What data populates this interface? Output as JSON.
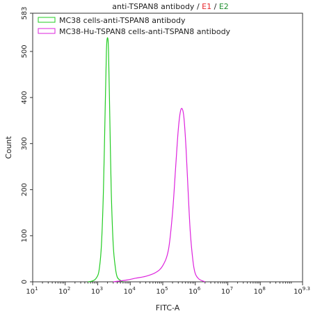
{
  "chart_data": {
    "type": "line",
    "title_parts": [
      {
        "text": "anti-TSPAN8 antibody",
        "color": "#222222"
      },
      {
        "text": " / ",
        "color": "#222222"
      },
      {
        "text": "E1",
        "color": "#e8262b"
      },
      {
        "text": " / ",
        "color": "#222222"
      },
      {
        "text": "E2",
        "color": "#1f8f2f"
      }
    ],
    "xlabel": "FITC-A",
    "ylabel": "Count",
    "x_scale": "log",
    "xlim": [
      10,
      1995262315
    ],
    "ylim": [
      0,
      583
    ],
    "x_ticks": [
      {
        "base": "10",
        "exp": "1",
        "value": 10
      },
      {
        "base": "10",
        "exp": "2",
        "value": 100
      },
      {
        "base": "10",
        "exp": "3",
        "value": 1000
      },
      {
        "base": "10",
        "exp": "4",
        "value": 10000
      },
      {
        "base": "10",
        "exp": "5",
        "value": 100000
      },
      {
        "base": "10",
        "exp": "6",
        "value": 1000000
      },
      {
        "base": "10",
        "exp": "7",
        "value": 10000000
      },
      {
        "base": "10",
        "exp": "8",
        "value": 100000000
      },
      {
        "base": "10",
        "exp": "9.3",
        "value": 1995262315
      }
    ],
    "y_ticks": [
      {
        "label": "0",
        "value": 0
      },
      {
        "label": "100",
        "value": 100
      },
      {
        "label": "200",
        "value": 200
      },
      {
        "label": "300",
        "value": 300
      },
      {
        "label": "400",
        "value": 400
      },
      {
        "label": "500",
        "value": 500
      },
      {
        "label": "583",
        "value": 583
      }
    ],
    "legend": {
      "position": "top-left"
    },
    "series": [
      {
        "name": "MC38 cells-anti-TSPAN8 antibody",
        "color": "#22cc22",
        "points": [
          [
            500,
            0
          ],
          [
            700,
            2
          ],
          [
            900,
            8
          ],
          [
            1100,
            25
          ],
          [
            1300,
            80
          ],
          [
            1500,
            200
          ],
          [
            1700,
            380
          ],
          [
            1850,
            500
          ],
          [
            2000,
            530
          ],
          [
            2150,
            500
          ],
          [
            2350,
            360
          ],
          [
            2600,
            200
          ],
          [
            3000,
            80
          ],
          [
            3500,
            30
          ],
          [
            4000,
            10
          ],
          [
            5000,
            3
          ],
          [
            6000,
            0
          ]
        ]
      },
      {
        "name": "MC38-Hu-TSPAN8 cells-anti-TSPAN8 antibody",
        "color": "#dd22dd",
        "points": [
          [
            3000,
            0
          ],
          [
            8000,
            4
          ],
          [
            15000,
            8
          ],
          [
            30000,
            12
          ],
          [
            60000,
            20
          ],
          [
            100000,
            35
          ],
          [
            150000,
            70
          ],
          [
            200000,
            150
          ],
          [
            250000,
            250
          ],
          [
            300000,
            330
          ],
          [
            350000,
            370
          ],
          [
            400000,
            375
          ],
          [
            450000,
            355
          ],
          [
            520000,
            290
          ],
          [
            600000,
            200
          ],
          [
            700000,
            110
          ],
          [
            850000,
            45
          ],
          [
            1000000,
            18
          ],
          [
            1300000,
            6
          ],
          [
            2000000,
            0
          ]
        ]
      }
    ]
  }
}
